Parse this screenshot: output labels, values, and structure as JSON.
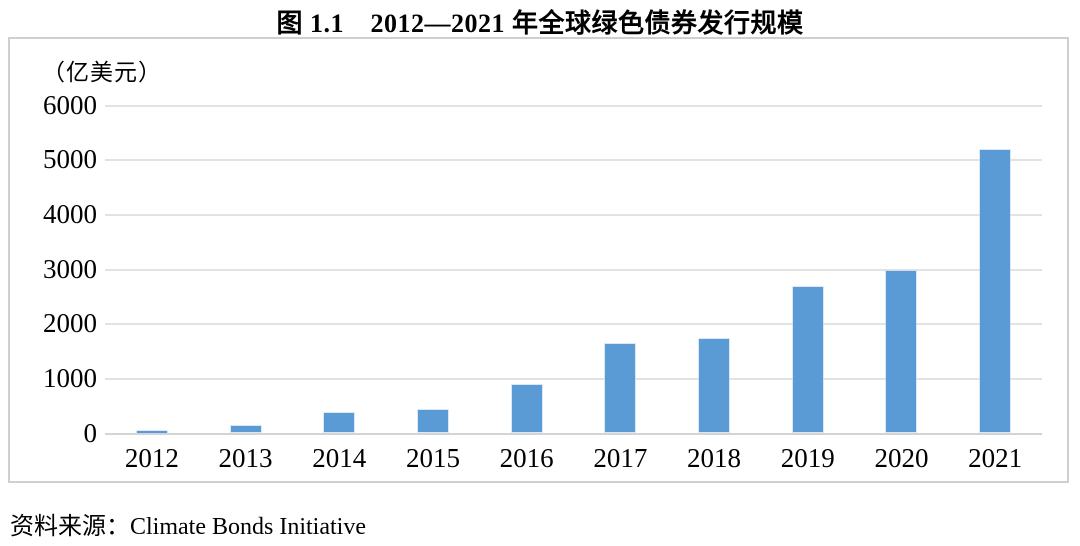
{
  "page": {
    "title": "图 1.1　2012—2021 年全球绿色债券发行规模"
  },
  "chart_data": {
    "type": "bar",
    "title": "图 1.1　2012—2021 年全球绿色债券发行规模",
    "unit_label": "（亿美元）",
    "categories": [
      "2012",
      "2013",
      "2014",
      "2015",
      "2016",
      "2017",
      "2018",
      "2019",
      "2020",
      "2021"
    ],
    "values": [
      30,
      110,
      360,
      420,
      870,
      1620,
      1710,
      2660,
      2960,
      5170
    ],
    "xlabel": "",
    "ylabel": "（亿美元）",
    "ylim": [
      0,
      6000
    ],
    "yticks": [
      0,
      1000,
      2000,
      3000,
      4000,
      5000,
      6000
    ],
    "grid": true,
    "legend": "none",
    "bar_color": "#5b9bd5",
    "gridline_color": "#e2e2e2",
    "axis_line_color": "#d4d4d4",
    "box_border_color": "#cfcfcf"
  },
  "footer": {
    "source": "资料来源：Climate Bonds Initiative"
  }
}
